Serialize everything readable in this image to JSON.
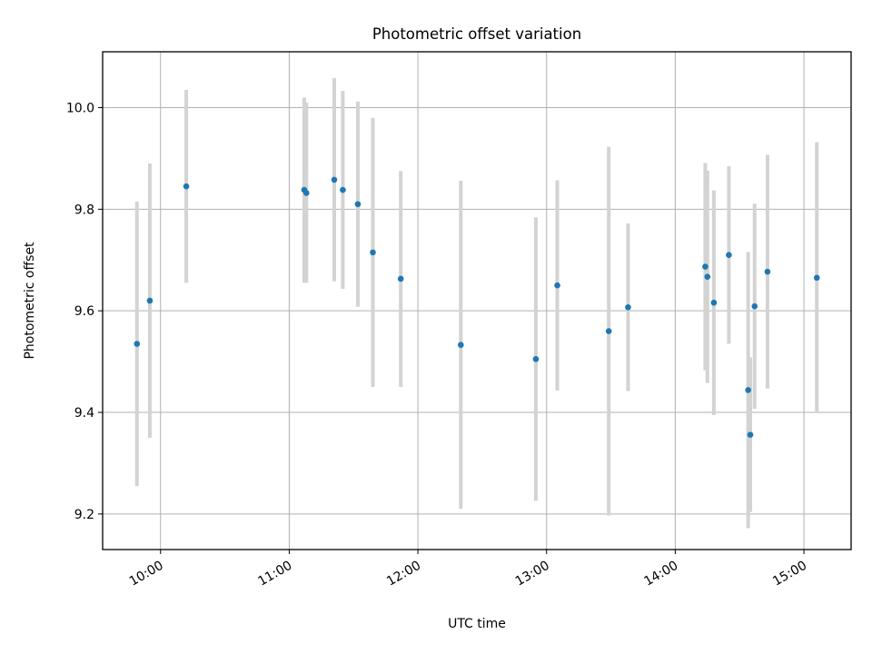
{
  "chart_data": {
    "type": "scatter",
    "title": "Photometric offset variation",
    "xlabel": "UTC time",
    "ylabel": "Photometric offset",
    "x_unit": "hours UTC",
    "xlim": [
      "09:33",
      "15:22"
    ],
    "ylim": [
      9.13,
      10.11
    ],
    "grid": true,
    "x_ticks": [
      "10:00",
      "11:00",
      "12:00",
      "13:00",
      "14:00",
      "15:00"
    ],
    "y_ticks": [
      "9.2",
      "9.4",
      "9.6",
      "9.8",
      "10.0"
    ],
    "series": [
      {
        "marker_color": "#1f77b4",
        "errorbar_color": "#d3d3d3",
        "points": [
          {
            "x": "09:49",
            "y": 9.535,
            "low": 9.255,
            "high": 9.815
          },
          {
            "x": "09:55",
            "y": 9.62,
            "low": 9.35,
            "high": 9.89
          },
          {
            "x": "10:12",
            "y": 9.845,
            "low": 9.655,
            "high": 10.035
          },
          {
            "x": "11:07",
            "y": 9.838,
            "low": 9.655,
            "high": 10.02
          },
          {
            "x": "11:08",
            "y": 9.832,
            "low": 9.655,
            "high": 10.01
          },
          {
            "x": "11:21",
            "y": 9.858,
            "low": 9.658,
            "high": 10.058
          },
          {
            "x": "11:25",
            "y": 9.838,
            "low": 9.643,
            "high": 10.033
          },
          {
            "x": "11:32",
            "y": 9.81,
            "low": 9.608,
            "high": 10.012
          },
          {
            "x": "11:39",
            "y": 9.715,
            "low": 9.45,
            "high": 9.98
          },
          {
            "x": "11:52",
            "y": 9.663,
            "low": 9.45,
            "high": 9.875
          },
          {
            "x": "12:20",
            "y": 9.533,
            "low": 9.21,
            "high": 9.856
          },
          {
            "x": "12:55",
            "y": 9.505,
            "low": 9.226,
            "high": 9.784
          },
          {
            "x": "13:05",
            "y": 9.65,
            "low": 9.443,
            "high": 9.857
          },
          {
            "x": "13:29",
            "y": 9.56,
            "low": 9.197,
            "high": 9.923
          },
          {
            "x": "13:38",
            "y": 9.607,
            "low": 9.442,
            "high": 9.772
          },
          {
            "x": "14:14",
            "y": 9.687,
            "low": 9.483,
            "high": 9.891
          },
          {
            "x": "14:15",
            "y": 9.667,
            "low": 9.458,
            "high": 9.876
          },
          {
            "x": "14:18",
            "y": 9.616,
            "low": 9.395,
            "high": 9.837
          },
          {
            "x": "14:25",
            "y": 9.71,
            "low": 9.535,
            "high": 9.885
          },
          {
            "x": "14:34",
            "y": 9.444,
            "low": 9.172,
            "high": 9.716
          },
          {
            "x": "14:35",
            "y": 9.356,
            "low": 9.204,
            "high": 9.508
          },
          {
            "x": "14:37",
            "y": 9.609,
            "low": 9.407,
            "high": 9.811
          },
          {
            "x": "14:43",
            "y": 9.677,
            "low": 9.447,
            "high": 9.907
          },
          {
            "x": "15:06",
            "y": 9.665,
            "low": 9.4,
            "high": 9.932
          }
        ]
      }
    ]
  }
}
